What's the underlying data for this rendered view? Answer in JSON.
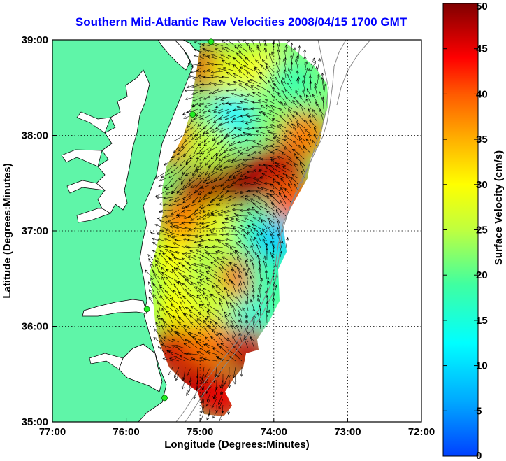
{
  "title": "Southern Mid-Atlantic Raw Velocities 2008/04/15 1700 GMT",
  "x_axis": {
    "label": "Longitude (Degrees:Minutes)",
    "ticks": [
      "77:00",
      "76:00",
      "75:00",
      "74:00",
      "73:00",
      "72:00"
    ],
    "range": [
      -77,
      -72
    ]
  },
  "y_axis": {
    "label": "Latitude (Degrees:Minutes)",
    "ticks": [
      "39:00",
      "38:00",
      "37:00",
      "36:00",
      "35:00"
    ],
    "range": [
      35,
      39
    ]
  },
  "colorbar": {
    "label": "Surface Velocity (cm/s)",
    "ticks": [
      "50",
      "45",
      "40",
      "35",
      "30",
      "25",
      "20",
      "15",
      "10",
      "5",
      "0"
    ],
    "range": [
      0,
      50
    ]
  },
  "colors": {
    "land": "#5ff5a8",
    "water": "#ffffff",
    "title": "#0000ff",
    "station": "#22ee22"
  },
  "chart_data": {
    "type": "heatmap",
    "title": "Southern Mid-Atlantic Raw Velocities 2008/04/15 1700 GMT",
    "xlabel": "Longitude (Degrees:Minutes)",
    "ylabel": "Latitude (Degrees:Minutes)",
    "xlim": [
      -77,
      -72
    ],
    "ylim": [
      35,
      39
    ],
    "colorbar_label": "Surface Velocity (cm/s)",
    "clim": [
      0,
      50
    ],
    "grid": true,
    "stations": [
      {
        "lon": -74.85,
        "lat": 38.98
      },
      {
        "lon": -75.1,
        "lat": 38.22
      },
      {
        "lon": -75.72,
        "lat": 36.18
      },
      {
        "lon": -75.48,
        "lat": 35.25
      }
    ],
    "speed_regions": [
      {
        "lon": -74.85,
        "lat": 38.7,
        "speed": 45
      },
      {
        "lon": -74.55,
        "lat": 38.65,
        "speed": 28
      },
      {
        "lon": -74.1,
        "lat": 38.7,
        "speed": 30
      },
      {
        "lon": -73.8,
        "lat": 38.55,
        "speed": 18
      },
      {
        "lon": -74.55,
        "lat": 38.2,
        "speed": 12
      },
      {
        "lon": -74.0,
        "lat": 38.2,
        "speed": 22
      },
      {
        "lon": -73.6,
        "lat": 38.0,
        "speed": 38
      },
      {
        "lon": -75.3,
        "lat": 37.95,
        "speed": 40
      },
      {
        "lon": -74.9,
        "lat": 37.9,
        "speed": 25
      },
      {
        "lon": -74.95,
        "lat": 37.4,
        "speed": 48
      },
      {
        "lon": -74.45,
        "lat": 37.5,
        "speed": 49
      },
      {
        "lon": -73.95,
        "lat": 37.65,
        "speed": 47
      },
      {
        "lon": -73.75,
        "lat": 37.3,
        "speed": 40
      },
      {
        "lon": -75.25,
        "lat": 37.1,
        "speed": 38
      },
      {
        "lon": -74.7,
        "lat": 37.05,
        "speed": 28
      },
      {
        "lon": -74.25,
        "lat": 37.0,
        "speed": 18
      },
      {
        "lon": -73.95,
        "lat": 36.9,
        "speed": 9
      },
      {
        "lon": -75.35,
        "lat": 36.7,
        "speed": 30
      },
      {
        "lon": -74.85,
        "lat": 36.6,
        "speed": 24
      },
      {
        "lon": -74.45,
        "lat": 36.45,
        "speed": 42
      },
      {
        "lon": -74.05,
        "lat": 36.5,
        "speed": 18
      },
      {
        "lon": -75.3,
        "lat": 36.2,
        "speed": 30
      },
      {
        "lon": -74.8,
        "lat": 36.2,
        "speed": 26
      },
      {
        "lon": -74.3,
        "lat": 36.05,
        "speed": 15
      },
      {
        "lon": -75.35,
        "lat": 35.75,
        "speed": 46
      },
      {
        "lon": -74.85,
        "lat": 35.8,
        "speed": 38
      },
      {
        "lon": -74.35,
        "lat": 35.75,
        "speed": 47
      },
      {
        "lon": -75.05,
        "lat": 35.4,
        "speed": 47
      },
      {
        "lon": -74.7,
        "lat": 35.25,
        "speed": 45
      }
    ]
  }
}
